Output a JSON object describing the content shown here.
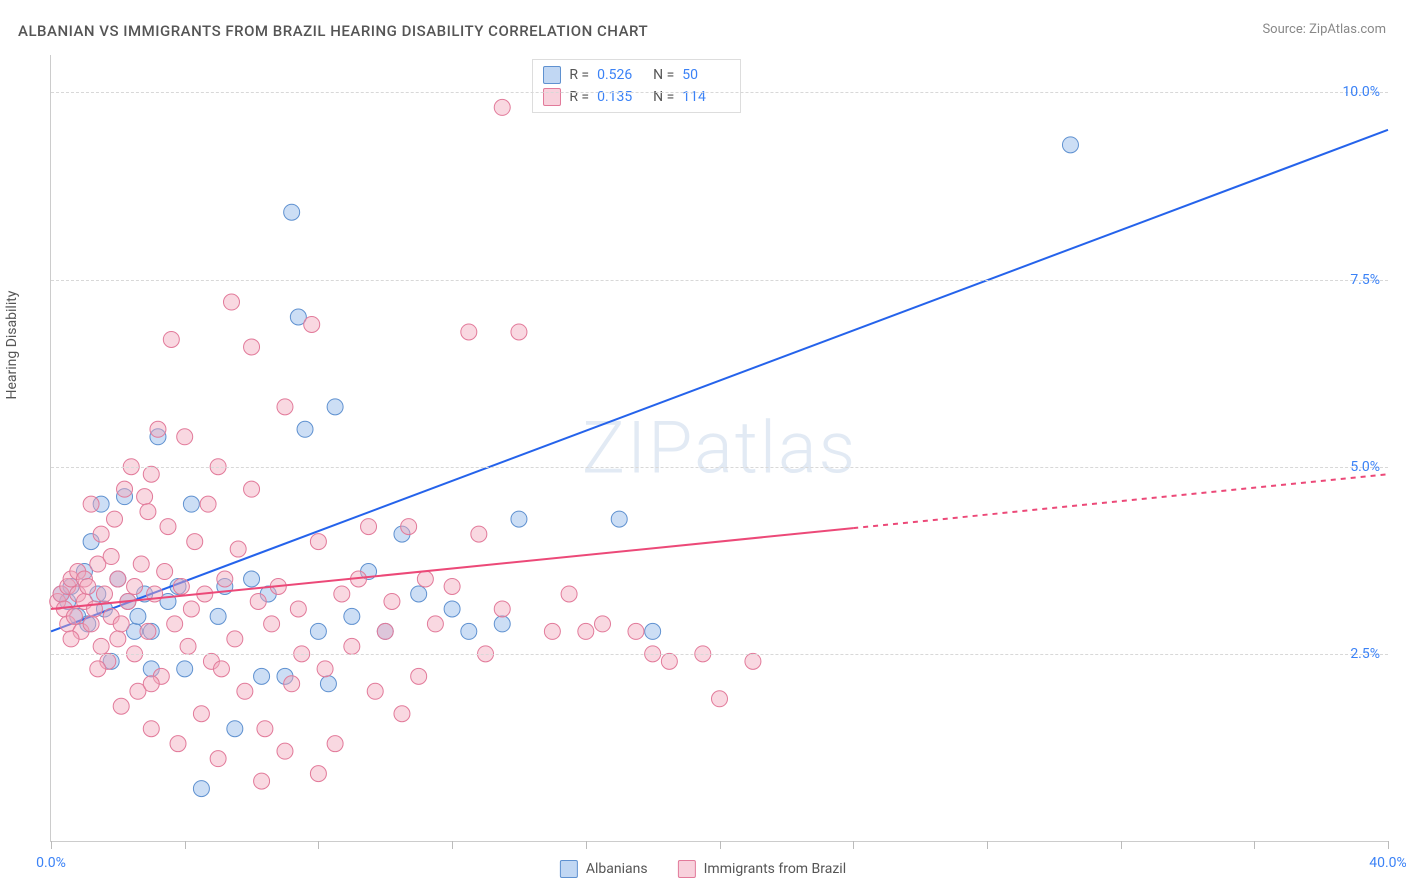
{
  "title": "ALBANIAN VS IMMIGRANTS FROM BRAZIL HEARING DISABILITY CORRELATION CHART",
  "source_label": "Source:",
  "source_name": "ZipAtlas.com",
  "ylabel": "Hearing Disability",
  "watermark": "ZIPatlas",
  "chart": {
    "type": "scatter",
    "xlim": [
      0,
      40
    ],
    "ylim": [
      0,
      10.5
    ],
    "x_tick_positions": [
      0,
      4,
      8,
      12,
      16,
      20,
      24,
      28,
      32,
      36,
      40
    ],
    "x_tick_labels_shown": {
      "0": "0.0%",
      "40": "40.0%"
    },
    "y_gridlines": [
      2.5,
      5.0,
      7.5,
      10.0
    ],
    "y_tick_labels": [
      "2.5%",
      "5.0%",
      "7.5%",
      "10.0%"
    ],
    "background_color": "#ffffff",
    "grid_color": "#d8d8d8",
    "marker_radius": 8,
    "marker_opacity": 0.45,
    "series": [
      {
        "name": "Albanians",
        "color_fill": "#8db6e8",
        "color_stroke": "#5f91d0",
        "R": "0.526",
        "N": "50",
        "trend": {
          "x1": 0,
          "y1": 2.8,
          "x2": 40,
          "y2": 9.5,
          "color": "#2563eb",
          "width": 2,
          "dash_from_x": null
        },
        "points": [
          [
            0.3,
            3.3
          ],
          [
            0.5,
            3.2
          ],
          [
            0.6,
            3.4
          ],
          [
            0.8,
            3.0
          ],
          [
            1.0,
            3.6
          ],
          [
            1.1,
            2.9
          ],
          [
            1.2,
            4.0
          ],
          [
            1.4,
            3.3
          ],
          [
            1.5,
            4.5
          ],
          [
            1.6,
            3.1
          ],
          [
            1.8,
            2.4
          ],
          [
            2.0,
            3.5
          ],
          [
            2.2,
            4.6
          ],
          [
            2.3,
            3.2
          ],
          [
            2.5,
            2.8
          ],
          [
            2.6,
            3.0
          ],
          [
            2.8,
            3.3
          ],
          [
            3.0,
            2.3
          ],
          [
            3.2,
            5.4
          ],
          [
            3.5,
            3.2
          ],
          [
            3.8,
            3.4
          ],
          [
            4.0,
            2.3
          ],
          [
            4.2,
            4.5
          ],
          [
            4.5,
            0.7
          ],
          [
            5.0,
            3.0
          ],
          [
            5.2,
            3.4
          ],
          [
            5.5,
            1.5
          ],
          [
            6.0,
            3.5
          ],
          [
            6.3,
            2.2
          ],
          [
            6.5,
            3.3
          ],
          [
            7.0,
            2.2
          ],
          [
            7.2,
            8.4
          ],
          [
            7.4,
            7.0
          ],
          [
            7.6,
            5.5
          ],
          [
            8.0,
            2.8
          ],
          [
            8.3,
            2.1
          ],
          [
            8.5,
            5.8
          ],
          [
            9.0,
            3.0
          ],
          [
            9.5,
            3.6
          ],
          [
            10.0,
            2.8
          ],
          [
            10.5,
            4.1
          ],
          [
            11.0,
            3.3
          ],
          [
            12.0,
            3.1
          ],
          [
            12.5,
            2.8
          ],
          [
            13.5,
            2.9
          ],
          [
            14.0,
            4.3
          ],
          [
            17.0,
            4.3
          ],
          [
            18.0,
            2.8
          ],
          [
            30.5,
            9.3
          ],
          [
            3.0,
            2.8
          ]
        ]
      },
      {
        "name": "Immigrants from Brazil",
        "color_fill": "#f1a8bd",
        "color_stroke": "#e27a9a",
        "R": "0.135",
        "N": "114",
        "trend": {
          "x1": 0,
          "y1": 3.1,
          "x2": 40,
          "y2": 4.9,
          "color": "#ec4978",
          "width": 2,
          "dash_from_x": 24
        },
        "points": [
          [
            0.2,
            3.2
          ],
          [
            0.3,
            3.3
          ],
          [
            0.4,
            3.1
          ],
          [
            0.5,
            3.4
          ],
          [
            0.5,
            2.9
          ],
          [
            0.6,
            3.5
          ],
          [
            0.7,
            3.0
          ],
          [
            0.8,
            3.3
          ],
          [
            0.8,
            3.6
          ],
          [
            0.9,
            2.8
          ],
          [
            1.0,
            3.2
          ],
          [
            1.0,
            3.5
          ],
          [
            1.1,
            3.4
          ],
          [
            1.2,
            2.9
          ],
          [
            1.2,
            4.5
          ],
          [
            1.3,
            3.1
          ],
          [
            1.4,
            3.7
          ],
          [
            1.5,
            2.6
          ],
          [
            1.5,
            4.1
          ],
          [
            1.6,
            3.3
          ],
          [
            1.7,
            2.4
          ],
          [
            1.8,
            3.8
          ],
          [
            1.8,
            3.0
          ],
          [
            1.9,
            4.3
          ],
          [
            2.0,
            2.7
          ],
          [
            2.0,
            3.5
          ],
          [
            2.1,
            1.8
          ],
          [
            2.2,
            4.7
          ],
          [
            2.3,
            3.2
          ],
          [
            2.4,
            5.0
          ],
          [
            2.5,
            2.5
          ],
          [
            2.5,
            3.4
          ],
          [
            2.6,
            2.0
          ],
          [
            2.7,
            3.7
          ],
          [
            2.8,
            4.6
          ],
          [
            2.9,
            2.8
          ],
          [
            3.0,
            4.9
          ],
          [
            3.0,
            1.5
          ],
          [
            3.1,
            3.3
          ],
          [
            3.2,
            5.5
          ],
          [
            3.3,
            2.2
          ],
          [
            3.4,
            3.6
          ],
          [
            3.5,
            4.2
          ],
          [
            3.6,
            6.7
          ],
          [
            3.7,
            2.9
          ],
          [
            3.8,
            1.3
          ],
          [
            3.9,
            3.4
          ],
          [
            4.0,
            5.4
          ],
          [
            4.1,
            2.6
          ],
          [
            4.2,
            3.1
          ],
          [
            4.3,
            4.0
          ],
          [
            4.5,
            1.7
          ],
          [
            4.6,
            3.3
          ],
          [
            4.8,
            2.4
          ],
          [
            5.0,
            5.0
          ],
          [
            5.0,
            1.1
          ],
          [
            5.2,
            3.5
          ],
          [
            5.4,
            7.2
          ],
          [
            5.5,
            2.7
          ],
          [
            5.6,
            3.9
          ],
          [
            5.8,
            2.0
          ],
          [
            6.0,
            4.7
          ],
          [
            6.0,
            6.6
          ],
          [
            6.2,
            3.2
          ],
          [
            6.4,
            1.5
          ],
          [
            6.6,
            2.9
          ],
          [
            6.8,
            3.4
          ],
          [
            7.0,
            5.8
          ],
          [
            7.0,
            1.2
          ],
          [
            7.2,
            2.1
          ],
          [
            7.4,
            3.1
          ],
          [
            7.5,
            2.5
          ],
          [
            7.8,
            6.9
          ],
          [
            8.0,
            0.9
          ],
          [
            8.0,
            4.0
          ],
          [
            8.2,
            2.3
          ],
          [
            8.5,
            1.3
          ],
          [
            8.7,
            3.3
          ],
          [
            9.0,
            2.6
          ],
          [
            9.2,
            3.5
          ],
          [
            9.5,
            4.2
          ],
          [
            9.7,
            2.0
          ],
          [
            10.0,
            2.8
          ],
          [
            10.2,
            3.2
          ],
          [
            10.5,
            1.7
          ],
          [
            10.7,
            4.2
          ],
          [
            11.0,
            2.2
          ],
          [
            11.2,
            3.5
          ],
          [
            11.5,
            2.9
          ],
          [
            12.0,
            3.4
          ],
          [
            12.5,
            6.8
          ],
          [
            12.8,
            4.1
          ],
          [
            13.0,
            2.5
          ],
          [
            13.5,
            3.1
          ],
          [
            13.5,
            9.8
          ],
          [
            14.0,
            6.8
          ],
          [
            15.0,
            2.8
          ],
          [
            15.5,
            3.3
          ],
          [
            16.0,
            2.8
          ],
          [
            16.5,
            2.9
          ],
          [
            17.5,
            2.8
          ],
          [
            18.0,
            2.5
          ],
          [
            18.5,
            2.4
          ],
          [
            19.5,
            2.5
          ],
          [
            20.0,
            1.9
          ],
          [
            21.0,
            2.4
          ],
          [
            1.4,
            2.3
          ],
          [
            2.9,
            4.4
          ],
          [
            4.7,
            4.5
          ],
          [
            6.3,
            0.8
          ],
          [
            5.1,
            2.3
          ],
          [
            3.0,
            2.1
          ],
          [
            2.1,
            2.9
          ],
          [
            0.6,
            2.7
          ]
        ]
      }
    ]
  },
  "bottom_legend": [
    {
      "swatch": "blue",
      "label": "Albanians"
    },
    {
      "swatch": "pink",
      "label": "Immigrants from Brazil"
    }
  ]
}
